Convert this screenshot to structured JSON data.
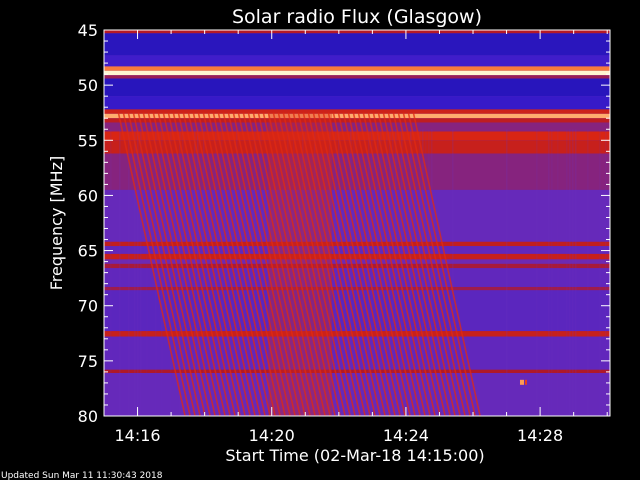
{
  "chart_data": {
    "type": "heatmap",
    "title": "Solar radio Flux (Glasgow)",
    "xlabel": "Start Time (02-Mar-18 14:15:00)",
    "ylabel": "Frequency [MHz]",
    "xlim": [
      "14:15:00",
      "14:30:05"
    ],
    "ylim": [
      45,
      80
    ],
    "y_inverted": true,
    "x_ticks": [
      "14:16",
      "14:20",
      "14:24",
      "14:28"
    ],
    "x_tick_minutes": [
      1,
      5,
      9,
      13
    ],
    "y_ticks": [
      45,
      50,
      55,
      60,
      65,
      70,
      75,
      80
    ],
    "grid": false,
    "colormap": [
      "#1a10b0",
      "#3c1ccc",
      "#6a2ab8",
      "#b01828",
      "#e02810",
      "#ff9048",
      "#fff4d0"
    ],
    "background_level": 0.32,
    "bands": [
      {
        "from": 45.0,
        "to": 45.3,
        "level": 0.52
      },
      {
        "from": 45.3,
        "to": 47.3,
        "level": 0.08
      },
      {
        "from": 47.3,
        "to": 48.3,
        "level": 0.18
      },
      {
        "from": 48.3,
        "to": 48.7,
        "level": 0.8
      },
      {
        "from": 48.7,
        "to": 49.1,
        "level": 1.0
      },
      {
        "from": 49.1,
        "to": 49.4,
        "level": 0.45
      },
      {
        "from": 49.4,
        "to": 51.0,
        "level": 0.07
      },
      {
        "from": 51.0,
        "to": 52.2,
        "level": 0.14
      },
      {
        "from": 52.2,
        "to": 52.6,
        "level": 0.6
      },
      {
        "from": 52.6,
        "to": 53.0,
        "level": 0.88
      },
      {
        "from": 53.0,
        "to": 53.4,
        "level": 0.55
      },
      {
        "from": 53.4,
        "to": 54.2,
        "level": 0.4
      },
      {
        "from": 54.2,
        "to": 55.0,
        "level": 0.64
      },
      {
        "from": 55.0,
        "to": 56.2,
        "level": 0.58
      },
      {
        "from": 56.2,
        "to": 59.5,
        "level": 0.4
      },
      {
        "from": 59.5,
        "to": 64.2,
        "level": 0.32
      },
      {
        "from": 64.2,
        "to": 64.6,
        "level": 0.56
      },
      {
        "from": 64.6,
        "to": 65.3,
        "level": 0.3
      },
      {
        "from": 65.3,
        "to": 65.8,
        "level": 0.58
      },
      {
        "from": 65.8,
        "to": 66.2,
        "level": 0.34
      },
      {
        "from": 66.2,
        "to": 66.6,
        "level": 0.48
      },
      {
        "from": 66.6,
        "to": 68.3,
        "level": 0.3
      },
      {
        "from": 68.3,
        "to": 68.6,
        "level": 0.46
      },
      {
        "from": 68.6,
        "to": 72.3,
        "level": 0.28
      },
      {
        "from": 72.3,
        "to": 72.8,
        "level": 0.58
      },
      {
        "from": 72.8,
        "to": 75.8,
        "level": 0.3
      },
      {
        "from": 75.8,
        "to": 76.1,
        "level": 0.5
      },
      {
        "from": 76.1,
        "to": 80.0,
        "level": 0.32
      }
    ],
    "burst": {
      "t_start_min": 4.9,
      "t_end_min": 6.8,
      "f_top": 52.5,
      "f_bottom": 80,
      "level": 0.62
    },
    "spot": {
      "t_min": 12.4,
      "freq": 76.9,
      "level": 0.85
    }
  },
  "footer": {
    "updated": "Updated Sun Mar 11 11:30:43 2018"
  }
}
